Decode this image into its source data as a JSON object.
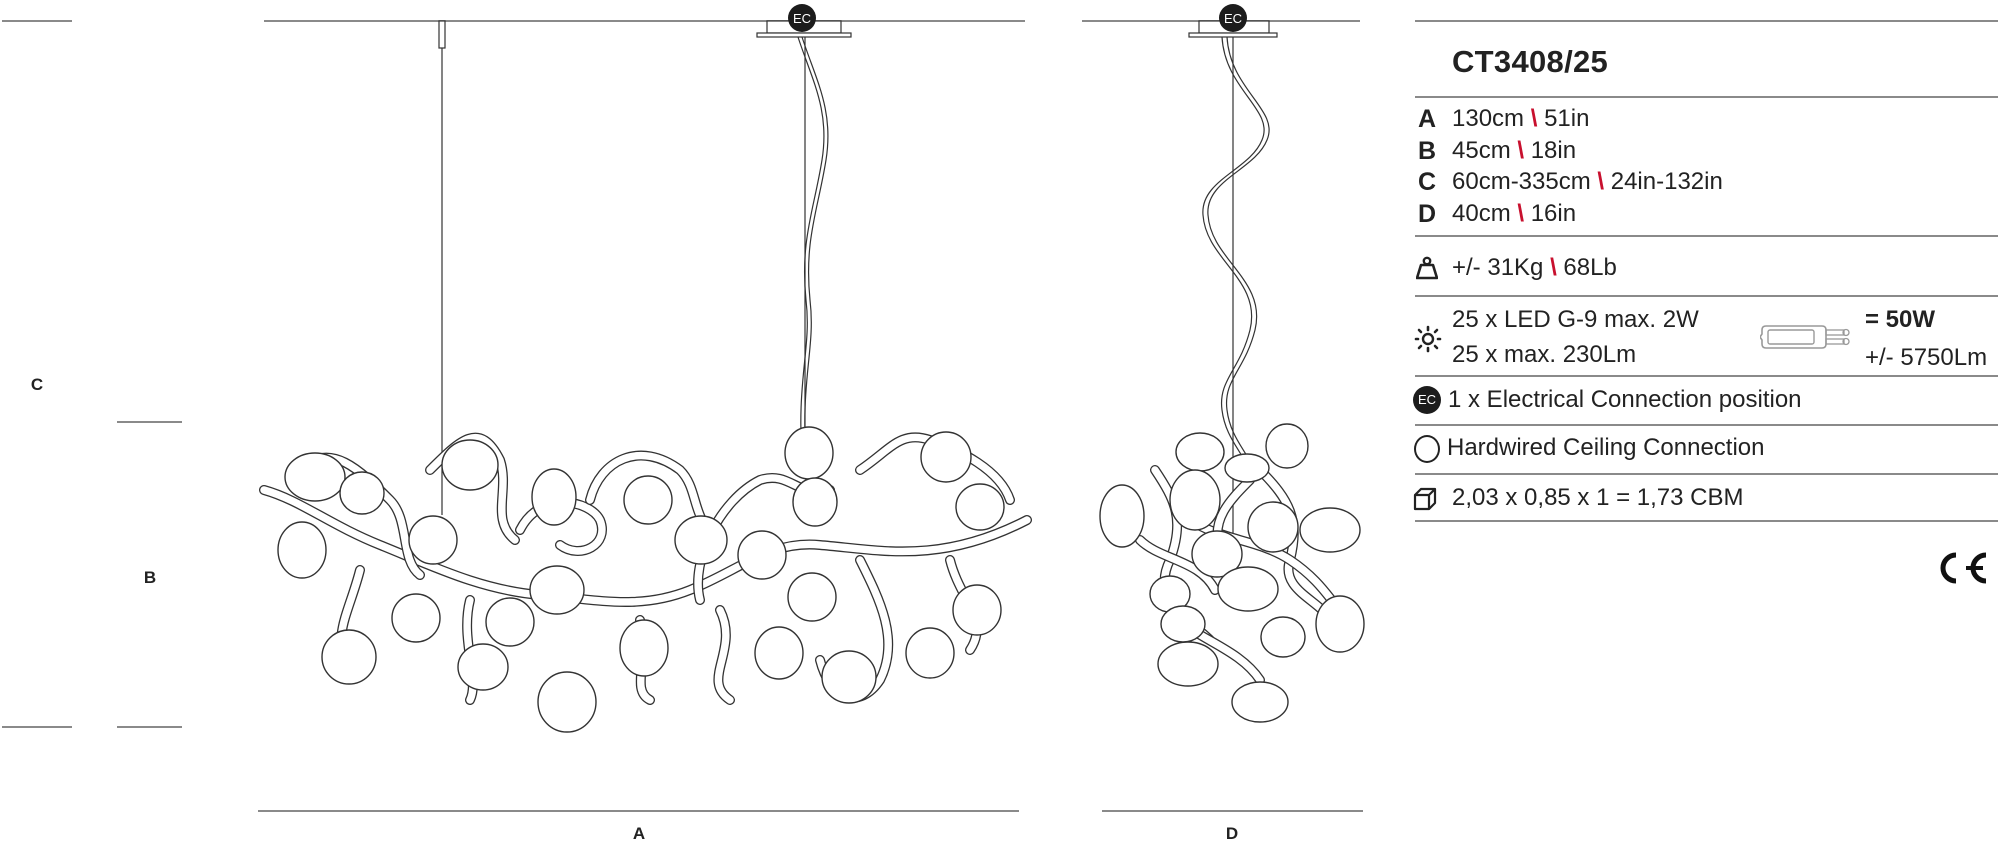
{
  "drawing": {
    "dimension_labels": {
      "A": "A",
      "B": "B",
      "C": "C",
      "D": "D"
    },
    "ec_marker": "EC"
  },
  "spec": {
    "product_code": "CT3408/25",
    "dimensions": [
      {
        "label": "A",
        "metric": "130cm",
        "sep": "\\",
        "imperial": "51in"
      },
      {
        "label": "B",
        "metric": "45cm",
        "sep": "\\",
        "imperial": "18in"
      },
      {
        "label": "C",
        "metric": "60cm-335cm",
        "sep": "\\",
        "imperial": "24in-132in"
      },
      {
        "label": "D",
        "metric": "40cm",
        "sep": "\\",
        "imperial": "16in"
      }
    ],
    "weight": {
      "icon": "weight-icon",
      "metric": "+/- 31Kg",
      "sep": "\\",
      "imperial": "68Lb"
    },
    "light": {
      "icon": "sun-icon",
      "line1": "25 x LED G-9 max. 2W",
      "line2": "25 x max. 230Lm",
      "bulb_icon": "g9-bulb-icon",
      "total_power": "= 50W",
      "total_lumen": "+/- 5750Lm"
    },
    "electrical": {
      "icon_text": "EC",
      "text": "1 x Electrical Connection position"
    },
    "ceiling": {
      "icon": "circle-icon",
      "text": "Hardwired Ceiling Connection"
    },
    "packaging": {
      "icon": "box-icon",
      "text": "2,03 x 0,85 x 1 = 1,73 CBM"
    },
    "certification": "CE"
  },
  "colors": {
    "text": "#222222",
    "accent_separator": "#c8102e",
    "rule": "#8a8a8a"
  }
}
